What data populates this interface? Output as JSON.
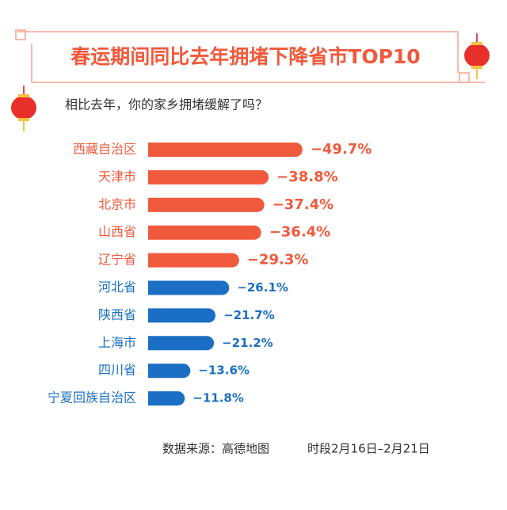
{
  "chart_data": {
    "type": "bar",
    "orientation": "horizontal",
    "title": "春运期间同比去年拥堵下降省市TOP10",
    "subtitle": "相比去年，你的家乡拥堵缓解了吗？",
    "source": "数据来源：高德地图",
    "period": "时段2月16日–2月21日",
    "categories": [
      "西藏自治区",
      "天津市",
      "北京市",
      "山西省",
      "辽宁省",
      "河北省",
      "陕西省",
      "上海市",
      "四川省",
      "宁夏回族自治区"
    ],
    "values": [
      -49.7,
      -38.8,
      -37.4,
      -36.4,
      -29.3,
      -26.1,
      -21.7,
      -21.2,
      -13.6,
      -11.8
    ],
    "value_labels": [
      "−49.7%",
      "−38.8%",
      "−37.4%",
      "−36.4%",
      "−29.3%",
      "−26.1%",
      "−21.7%",
      "−21.2%",
      "−13.6%",
      "−11.8%"
    ],
    "colors": [
      "#f05a3c",
      "#f05a3c",
      "#f05a3c",
      "#f05a3c",
      "#f05a3c",
      "#1a6fc4",
      "#1a6fc4",
      "#1a6fc4",
      "#1a6fc4",
      "#1a6fc4"
    ]
  }
}
